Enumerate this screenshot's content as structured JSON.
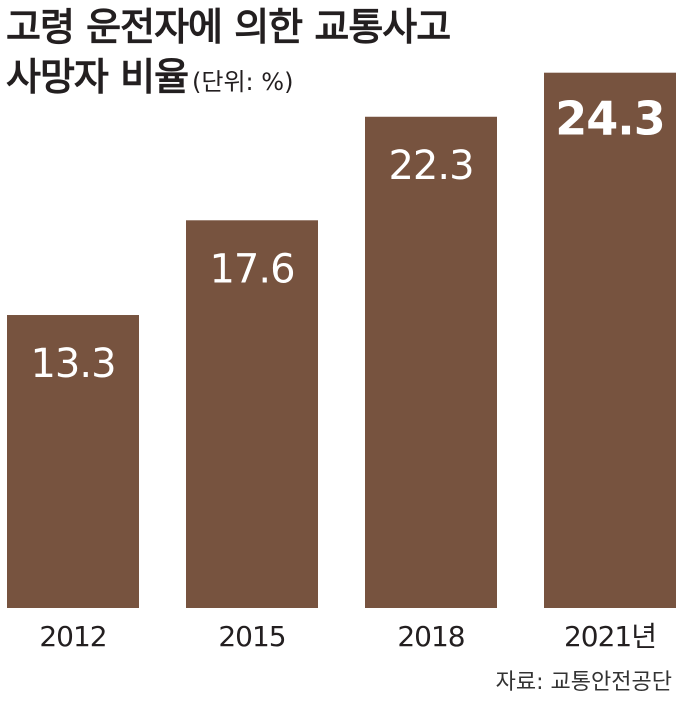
{
  "title": {
    "line1": "고령 운전자에 의한 교통사고",
    "line2": "사망자 비율",
    "unit": "(단위: %)"
  },
  "source": "자료: 교통안전공단",
  "colors": {
    "bar": "#77533f",
    "bar_label": "#ffffff",
    "axis_text": "#231f20"
  },
  "chart_data": {
    "type": "bar",
    "title": "고령 운전자에 의한 교통사고 사망자 비율",
    "unit": "%",
    "categories": [
      "2012",
      "2015",
      "2018",
      "2021년"
    ],
    "values": [
      13.3,
      17.6,
      22.3,
      24.3
    ],
    "value_labels": [
      "13.3",
      "17.6",
      "22.3",
      "24.3"
    ],
    "xlabel": "",
    "ylabel": "",
    "ylim": [
      0,
      27.6
    ],
    "grid": false,
    "legend": "none"
  }
}
